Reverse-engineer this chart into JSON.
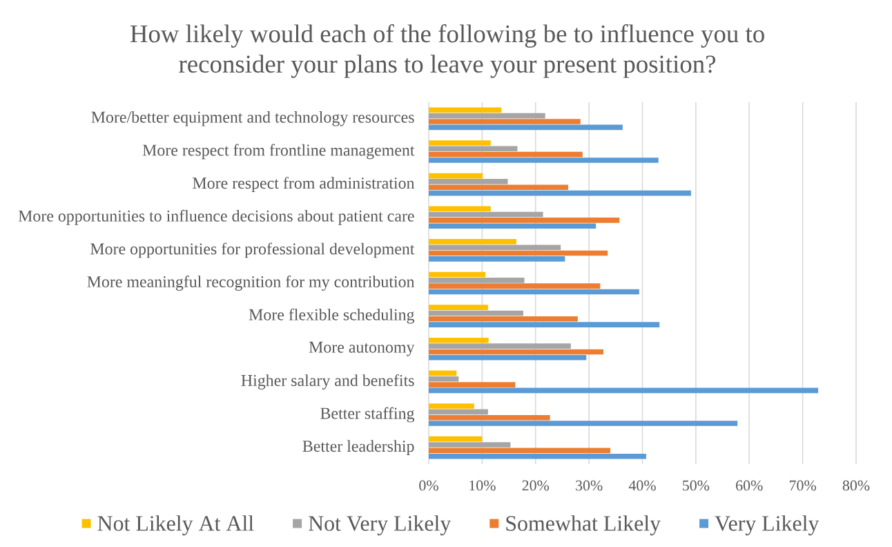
{
  "chart_data": {
    "type": "bar",
    "orientation": "horizontal",
    "title": "How likely would each of the following be to influence you to reconsider your plans to leave your present position?",
    "categories": [
      "More/better equipment and technology resources",
      "More respect from frontline management",
      "More respect from administration",
      "More opportunities to influence decisions about patient care",
      "More opportunities for professional development",
      "More meaningful recognition for my contribution",
      "More flexible scheduling",
      "More autonomy",
      "Higher salary and benefits",
      "Better staffing",
      "Better leadership"
    ],
    "series": [
      {
        "name": "Not Likely At All",
        "color": "#ffc000",
        "values": [
          13.6,
          11.6,
          10.1,
          11.6,
          16.4,
          10.6,
          11.1,
          11.2,
          5.2,
          8.5,
          10.0
        ]
      },
      {
        "name": "Not Very Likely",
        "color": "#a5a5a5",
        "values": [
          21.8,
          16.6,
          14.8,
          21.4,
          24.7,
          17.9,
          17.7,
          26.6,
          5.6,
          11.1,
          15.3
        ]
      },
      {
        "name": "Somewhat Likely",
        "color": "#ed7d31",
        "values": [
          28.4,
          28.8,
          26.1,
          35.7,
          33.5,
          32.1,
          27.9,
          32.7,
          16.2,
          22.7,
          34.0
        ]
      },
      {
        "name": "Very Likely",
        "color": "#5b9bd5",
        "values": [
          36.3,
          43.0,
          49.1,
          31.3,
          25.5,
          39.4,
          43.2,
          29.5,
          72.9,
          57.8,
          40.7
        ]
      }
    ],
    "xlim": [
      0,
      80
    ],
    "xticks": [
      {
        "value": 0,
        "label": "0%"
      },
      {
        "value": 10,
        "label": "10%"
      },
      {
        "value": 20,
        "label": "20%"
      },
      {
        "value": 30,
        "label": "30%"
      },
      {
        "value": 40,
        "label": "40%"
      },
      {
        "value": 50,
        "label": "50%"
      },
      {
        "value": 60,
        "label": "60%"
      },
      {
        "value": 70,
        "label": "70%"
      },
      {
        "value": 80,
        "label": "80%"
      }
    ],
    "grid": "x",
    "legend": "bottom"
  }
}
